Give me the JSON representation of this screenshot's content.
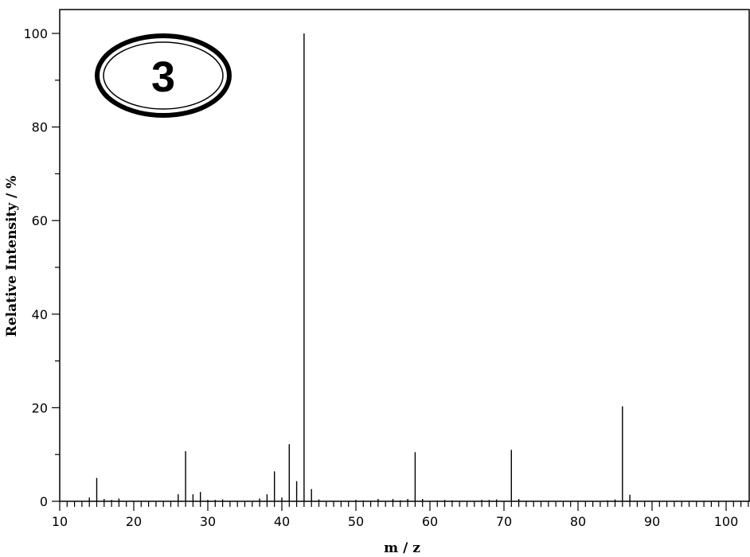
{
  "badge": {
    "label": "3"
  },
  "chart_data": {
    "type": "bar",
    "subtype": "mass-spectrum-stick",
    "title": "",
    "xlabel": "m / z",
    "ylabel": "Relative Intensity / %",
    "xlim": [
      10,
      103
    ],
    "ylim": [
      0,
      105
    ],
    "xticks": [
      10,
      20,
      30,
      40,
      50,
      60,
      70,
      80,
      90,
      100
    ],
    "yticks": [
      0,
      20,
      40,
      60,
      80,
      100
    ],
    "grid": false,
    "series": [
      {
        "x": [
          14,
          15,
          16,
          17,
          18,
          26,
          27,
          28,
          29,
          30,
          31,
          32,
          37,
          38,
          39,
          40,
          41,
          42,
          43,
          44,
          45,
          50,
          51,
          53,
          55,
          56,
          57,
          58,
          59,
          61,
          62,
          63,
          67,
          68,
          69,
          71,
          72,
          84,
          85,
          86,
          87
        ],
        "values": [
          0.8,
          5.0,
          0.5,
          0.3,
          0.6,
          1.5,
          10.7,
          1.5,
          2.0,
          0.3,
          0.3,
          0.4,
          0.6,
          1.5,
          6.4,
          0.8,
          12.2,
          4.3,
          100,
          2.6,
          0.4,
          0.3,
          0.2,
          0.5,
          0.5,
          0.2,
          0.5,
          10.5,
          0.5,
          0.2,
          0.3,
          0.2,
          0.3,
          0.3,
          0.4,
          11.0,
          0.5,
          0.2,
          0.4,
          20.3,
          1.4
        ]
      }
    ]
  }
}
